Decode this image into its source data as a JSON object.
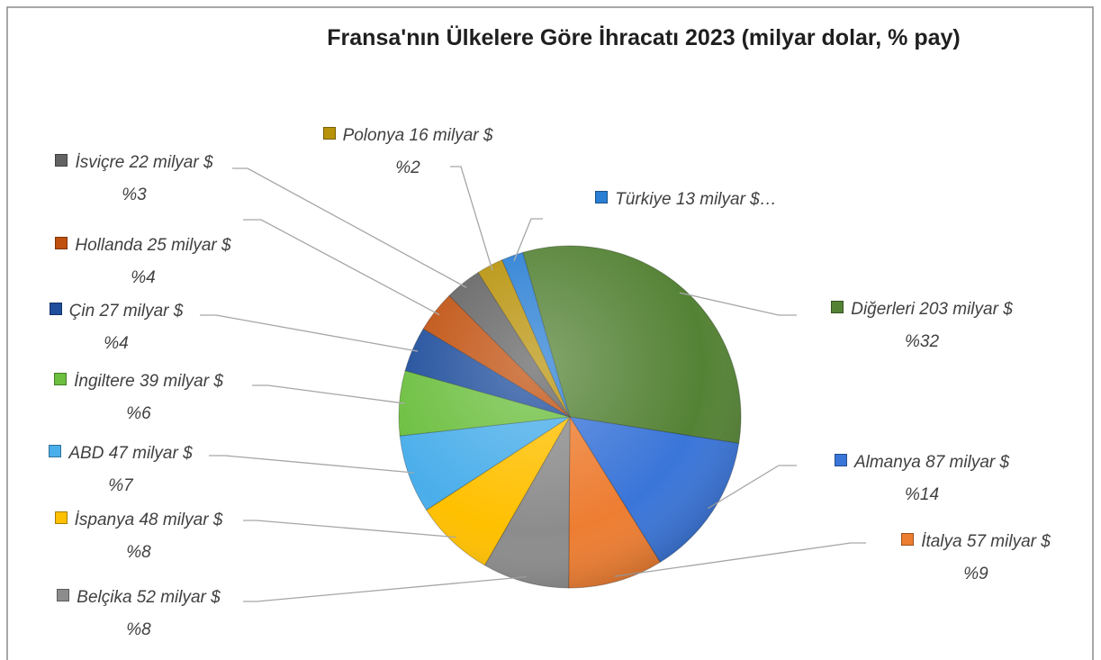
{
  "chart_data": {
    "type": "pie",
    "title": "Fransa'nın Ülkelere Göre İhracatı 2023 (milyar dolar, % pay)",
    "categories": [
      "Diğerleri",
      "Almanya",
      "İtalya",
      "Belçika",
      "İspanya",
      "ABD",
      "İngiltere",
      "Çin",
      "Hollanda",
      "İsviçre",
      "Polonya",
      "Türkiye"
    ],
    "values": [
      203,
      87,
      57,
      52,
      48,
      47,
      39,
      27,
      25,
      22,
      16,
      13
    ],
    "value_labels": [
      "203 milyar $",
      "87 milyar $",
      "57 milyar $",
      "52 milyar $",
      "48 milyar $",
      "47 milyar $",
      "39 milyar $",
      "27 milyar $",
      "25 milyar $",
      "22 milyar $",
      "16 milyar $",
      "13 milyar $…"
    ],
    "percent_labels": [
      "%32",
      "%14",
      "%9",
      "%8",
      "%8",
      "%7",
      "%6",
      "%4",
      "%4",
      "%3",
      "%2",
      null
    ],
    "colors": [
      "#548235",
      "#3a75d8",
      "#ed7d31",
      "#8c8c8c",
      "#ffc000",
      "#4aaeea",
      "#6cbf3f",
      "#1f4e9c",
      "#c0500e",
      "#636363",
      "#b8920a",
      "#2a7fd4"
    ]
  }
}
